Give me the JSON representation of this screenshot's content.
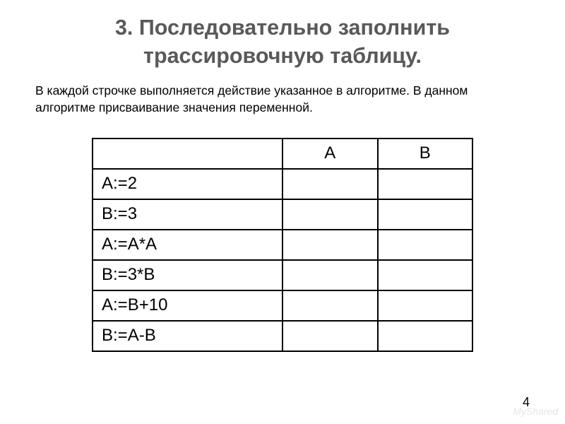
{
  "title": "3. Последовательно заполнить трассировочную таблицу.",
  "description": "В каждой строчке выполняется действие указанное в алгоритме. В данном алгоритме присваивание значения переменной.",
  "table": {
    "headers": {
      "action": "",
      "colA": "А",
      "colB": "В"
    },
    "rows": [
      {
        "action": "А:=2",
        "a": "",
        "b": ""
      },
      {
        "action": "В:=3",
        "a": "",
        "b": ""
      },
      {
        "action": "А:=А*А",
        "a": "",
        "b": ""
      },
      {
        "action": "В:=3*В",
        "a": "",
        "b": ""
      },
      {
        "action": "А:=В+10",
        "a": "",
        "b": ""
      },
      {
        "action": "В:=А-В",
        "a": "",
        "b": ""
      }
    ],
    "border_color": "#000000",
    "cell_fontsize": 24
  },
  "page_number": "4",
  "watermark": "MyShared",
  "colors": {
    "title": "#595959",
    "text": "#000000",
    "background": "#ffffff"
  }
}
